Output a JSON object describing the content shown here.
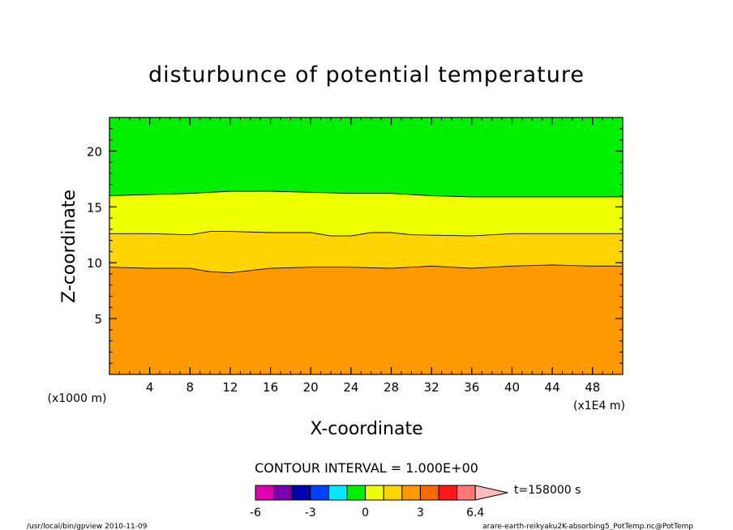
{
  "chart_data": {
    "type": "contour",
    "title": "disturbunce of potential temperature",
    "xlabel": "X-coordinate",
    "ylabel": "Z-coordinate",
    "x_unit": "(x1000 m)",
    "x_unit_secondary": "(x1E4 m)",
    "xlim": [
      0,
      51
    ],
    "ylim": [
      0,
      23
    ],
    "xticks": [
      4,
      8,
      12,
      16,
      20,
      24,
      28,
      32,
      36,
      40,
      44,
      48
    ],
    "yticks": [
      5,
      10,
      15,
      20
    ],
    "contour_interval": "CONTOUR INTERVAL = 1.000E+00",
    "time_label": "t=158000 s",
    "contour_lines": [
      {
        "level": 3,
        "x": [
          0,
          4,
          8,
          10,
          12,
          16,
          20,
          24,
          28,
          32,
          36,
          40,
          44,
          48,
          51
        ],
        "z": [
          9.6,
          9.5,
          9.5,
          9.2,
          9.1,
          9.5,
          9.6,
          9.6,
          9.5,
          9.7,
          9.5,
          9.7,
          9.8,
          9.7,
          9.7
        ]
      },
      {
        "level": 2,
        "x": [
          0,
          4,
          8,
          10,
          12,
          16,
          20,
          22,
          24,
          26,
          28,
          30,
          36,
          40,
          44,
          48,
          51
        ],
        "z": [
          12.6,
          12.6,
          12.5,
          12.8,
          12.8,
          12.7,
          12.7,
          12.4,
          12.4,
          12.7,
          12.7,
          12.5,
          12.4,
          12.6,
          12.6,
          12.6,
          12.6
        ]
      },
      {
        "level": 1,
        "x": [
          0,
          4,
          8,
          12,
          16,
          20,
          24,
          28,
          32,
          36,
          40,
          44,
          48,
          51
        ],
        "z": [
          16.0,
          16.1,
          16.2,
          16.4,
          16.4,
          16.3,
          16.2,
          16.2,
          16.0,
          15.9,
          15.9,
          15.9,
          15.9,
          15.9
        ]
      }
    ],
    "fill_colors": {
      "above_level_1": "#00f000",
      "level_1_to_2": "#f0ff00",
      "level_2_to_3": "#ffd400",
      "below_level_3": "#ff9900"
    },
    "colorbar": {
      "colors": [
        "#e000b0",
        "#7a00b0",
        "#0000b0",
        "#0040ff",
        "#00e8ff",
        "#00f000",
        "#f0ff00",
        "#ffd400",
        "#ff9900",
        "#ff6a00",
        "#ff1a1a",
        "#ff7777",
        "#ffbbbb"
      ],
      "labels": [
        "-6",
        "-3",
        "0",
        "3",
        "6.4"
      ]
    }
  },
  "footer": {
    "left": "/usr/local/bin/gpview  2010-11-09",
    "right": "arare-earth-reikyaku2K-absorbing5_PotTemp.nc@PotTemp"
  }
}
